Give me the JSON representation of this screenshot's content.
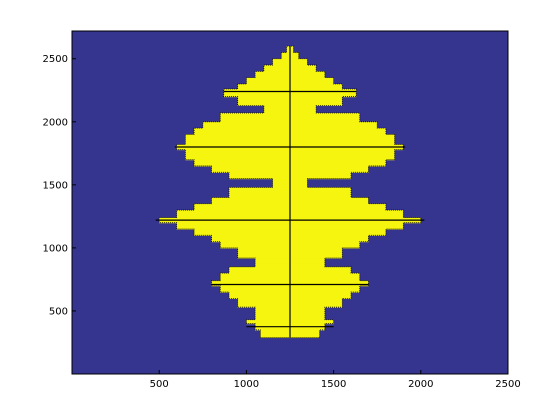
{
  "chart_data": {
    "type": "heatmap",
    "title": "",
    "xlabel": "",
    "ylabel": "",
    "xlim": [
      0,
      2500
    ],
    "ylim": [
      0,
      2720
    ],
    "x_ticks": [
      500,
      1000,
      1500,
      2000,
      2500
    ],
    "y_ticks": [
      500,
      1000,
      1500,
      2000,
      2500
    ],
    "x_tick_labels": [
      "500",
      "1000",
      "1500",
      "2000",
      "2500"
    ],
    "y_tick_labels": [
      "500",
      "1000",
      "1500",
      "2000",
      "2500"
    ],
    "colors": {
      "background": "#35348f",
      "fill": "#f5f50f",
      "outline": "#000000"
    },
    "center_x": 1250,
    "center_line": {
      "x": 1250,
      "y_from": 290,
      "y_to": 2600
    },
    "profile_step_y": 50,
    "profile": [
      {
        "y_min": 290,
        "y_max": 350,
        "half_width": 170
      },
      {
        "y_min": 350,
        "y_max": 400,
        "half_width": 200
      },
      {
        "y_min": 400,
        "y_max": 430,
        "half_width": 250
      },
      {
        "y_min": 430,
        "y_max": 470,
        "half_width": 200
      },
      {
        "y_min": 470,
        "y_max": 530,
        "half_width": 200
      },
      {
        "y_min": 530,
        "y_max": 600,
        "half_width": 300
      },
      {
        "y_min": 600,
        "y_max": 650,
        "half_width": 350
      },
      {
        "y_min": 650,
        "y_max": 700,
        "half_width": 400
      },
      {
        "y_min": 700,
        "y_max": 740,
        "half_width": 450
      },
      {
        "y_min": 740,
        "y_max": 800,
        "half_width": 400
      },
      {
        "y_min": 800,
        "y_max": 850,
        "half_width": 350
      },
      {
        "y_min": 850,
        "y_max": 920,
        "half_width": 200
      },
      {
        "y_min": 920,
        "y_max": 1000,
        "half_width": 300
      },
      {
        "y_min": 1000,
        "y_max": 1050,
        "half_width": 400
      },
      {
        "y_min": 1050,
        "y_max": 1100,
        "half_width": 450
      },
      {
        "y_min": 1100,
        "y_max": 1150,
        "half_width": 550
      },
      {
        "y_min": 1150,
        "y_max": 1200,
        "half_width": 650
      },
      {
        "y_min": 1200,
        "y_max": 1240,
        "half_width": 750
      },
      {
        "y_min": 1240,
        "y_max": 1300,
        "half_width": 650
      },
      {
        "y_min": 1300,
        "y_max": 1350,
        "half_width": 550
      },
      {
        "y_min": 1350,
        "y_max": 1400,
        "half_width": 450
      },
      {
        "y_min": 1400,
        "y_max": 1480,
        "half_width": 350
      },
      {
        "y_min": 1480,
        "y_max": 1550,
        "half_width": 100
      },
      {
        "y_min": 1550,
        "y_max": 1600,
        "half_width": 350
      },
      {
        "y_min": 1600,
        "y_max": 1650,
        "half_width": 450
      },
      {
        "y_min": 1650,
        "y_max": 1700,
        "half_width": 550
      },
      {
        "y_min": 1700,
        "y_max": 1780,
        "half_width": 600
      },
      {
        "y_min": 1780,
        "y_max": 1820,
        "half_width": 650
      },
      {
        "y_min": 1820,
        "y_max": 1900,
        "half_width": 600
      },
      {
        "y_min": 1900,
        "y_max": 1950,
        "half_width": 550
      },
      {
        "y_min": 1950,
        "y_max": 2000,
        "half_width": 500
      },
      {
        "y_min": 2000,
        "y_max": 2070,
        "half_width": 400
      },
      {
        "y_min": 2070,
        "y_max": 2130,
        "half_width": 150
      },
      {
        "y_min": 2130,
        "y_max": 2200,
        "half_width": 300
      },
      {
        "y_min": 2200,
        "y_max": 2260,
        "half_width": 380
      },
      {
        "y_min": 2260,
        "y_max": 2300,
        "half_width": 300
      },
      {
        "y_min": 2300,
        "y_max": 2350,
        "half_width": 250
      },
      {
        "y_min": 2350,
        "y_max": 2400,
        "half_width": 200
      },
      {
        "y_min": 2400,
        "y_max": 2450,
        "half_width": 150
      },
      {
        "y_min": 2450,
        "y_max": 2500,
        "half_width": 100
      },
      {
        "y_min": 2500,
        "y_max": 2550,
        "half_width": 50
      },
      {
        "y_min": 2550,
        "y_max": 2600,
        "half_width": 20
      }
    ],
    "horizontal_lines": [
      {
        "y": 375,
        "half_width": 250
      },
      {
        "y": 710,
        "half_width": 450
      },
      {
        "y": 1220,
        "half_width": 770
      },
      {
        "y": 1800,
        "half_width": 660
      },
      {
        "y": 2240,
        "half_width": 380
      }
    ]
  }
}
